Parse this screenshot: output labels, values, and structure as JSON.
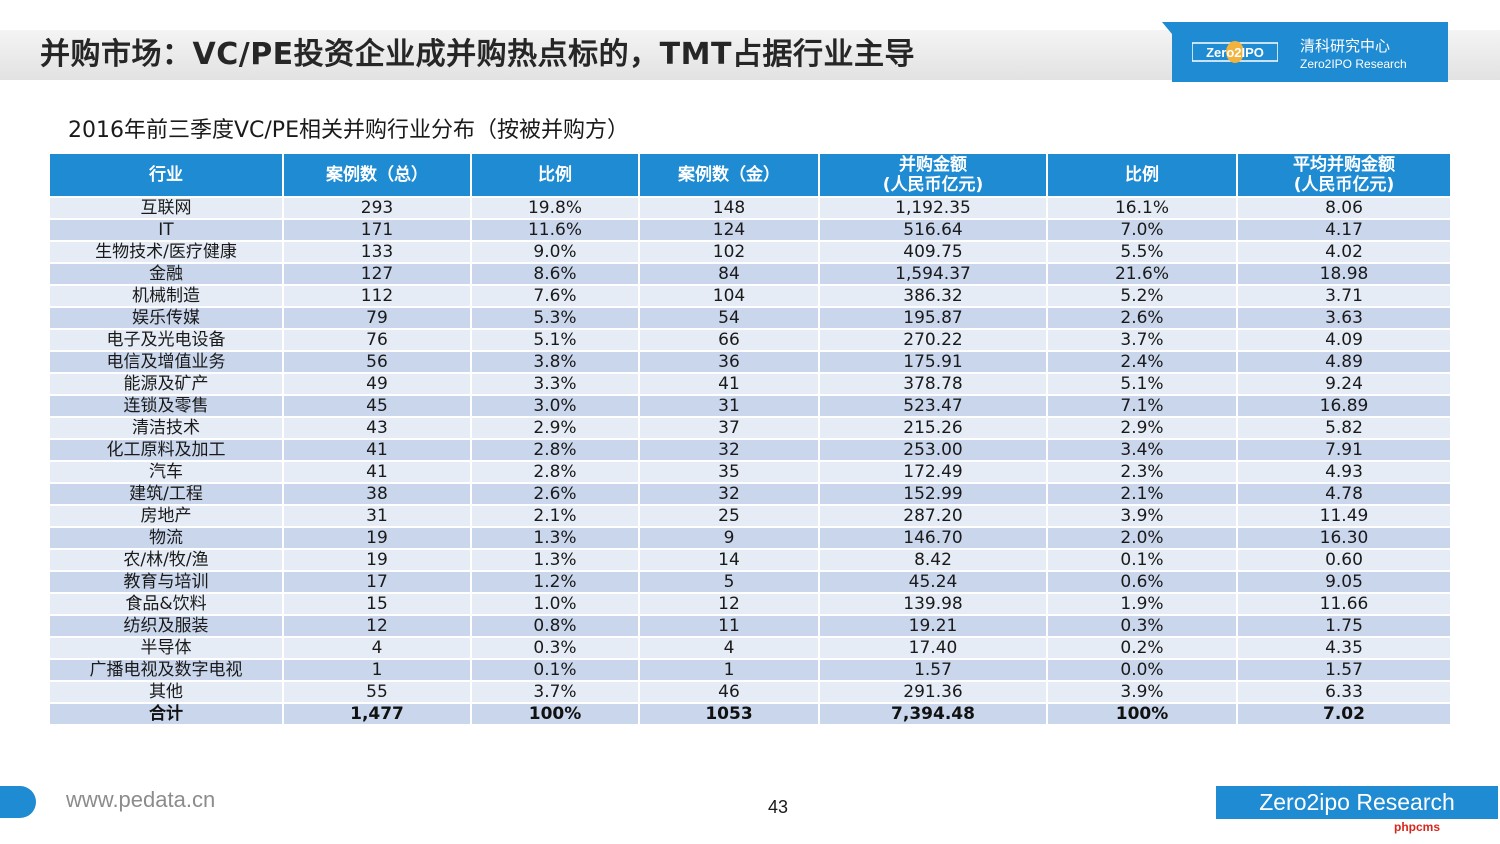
{
  "header": {
    "title": "并购市场：VC/PE投资企业成并购热点标的，TMT占据行业主导",
    "brand_cn": "清科研究中心",
    "brand_en": "Zero2IPO Research",
    "logo_text": "Zero2IPO"
  },
  "table_title": "2016年前三季度VC/PE相关并购行业分布（按被并购方）",
  "columns": [
    {
      "line1": "行业",
      "line2": ""
    },
    {
      "line1": "案例数（总）",
      "line2": ""
    },
    {
      "line1": "比例",
      "line2": ""
    },
    {
      "line1": "案例数（金）",
      "line2": ""
    },
    {
      "line1": "并购金额",
      "line2": "(人民币亿元)"
    },
    {
      "line1": "比例",
      "line2": ""
    },
    {
      "line1": "平均并购金额",
      "line2": "(人民币亿元)"
    }
  ],
  "rows": [
    [
      "互联网",
      "293",
      "19.8%",
      "148",
      "1,192.35",
      "16.1%",
      "8.06"
    ],
    [
      "IT",
      "171",
      "11.6%",
      "124",
      "516.64",
      "7.0%",
      "4.17"
    ],
    [
      "生物技术/医疗健康",
      "133",
      "9.0%",
      "102",
      "409.75",
      "5.5%",
      "4.02"
    ],
    [
      "金融",
      "127",
      "8.6%",
      "84",
      "1,594.37",
      "21.6%",
      "18.98"
    ],
    [
      "机械制造",
      "112",
      "7.6%",
      "104",
      "386.32",
      "5.2%",
      "3.71"
    ],
    [
      "娱乐传媒",
      "79",
      "5.3%",
      "54",
      "195.87",
      "2.6%",
      "3.63"
    ],
    [
      "电子及光电设备",
      "76",
      "5.1%",
      "66",
      "270.22",
      "3.7%",
      "4.09"
    ],
    [
      "电信及增值业务",
      "56",
      "3.8%",
      "36",
      "175.91",
      "2.4%",
      "4.89"
    ],
    [
      "能源及矿产",
      "49",
      "3.3%",
      "41",
      "378.78",
      "5.1%",
      "9.24"
    ],
    [
      "连锁及零售",
      "45",
      "3.0%",
      "31",
      "523.47",
      "7.1%",
      "16.89"
    ],
    [
      "清洁技术",
      "43",
      "2.9%",
      "37",
      "215.26",
      "2.9%",
      "5.82"
    ],
    [
      "化工原料及加工",
      "41",
      "2.8%",
      "32",
      "253.00",
      "3.4%",
      "7.91"
    ],
    [
      "汽车",
      "41",
      "2.8%",
      "35",
      "172.49",
      "2.3%",
      "4.93"
    ],
    [
      "建筑/工程",
      "38",
      "2.6%",
      "32",
      "152.99",
      "2.1%",
      "4.78"
    ],
    [
      "房地产",
      "31",
      "2.1%",
      "25",
      "287.20",
      "3.9%",
      "11.49"
    ],
    [
      "物流",
      "19",
      "1.3%",
      "9",
      "146.70",
      "2.0%",
      "16.30"
    ],
    [
      "农/林/牧/渔",
      "19",
      "1.3%",
      "14",
      "8.42",
      "0.1%",
      "0.60"
    ],
    [
      "教育与培训",
      "17",
      "1.2%",
      "5",
      "45.24",
      "0.6%",
      "9.05"
    ],
    [
      "食品&饮料",
      "15",
      "1.0%",
      "12",
      "139.98",
      "1.9%",
      "11.66"
    ],
    [
      "纺织及服装",
      "12",
      "0.8%",
      "11",
      "19.21",
      "0.3%",
      "1.75"
    ],
    [
      "半导体",
      "4",
      "0.3%",
      "4",
      "17.40",
      "0.2%",
      "4.35"
    ],
    [
      "广播电视及数字电视",
      "1",
      "0.1%",
      "1",
      "1.57",
      "0.0%",
      "1.57"
    ],
    [
      "其他",
      "55",
      "3.7%",
      "46",
      "291.36",
      "3.9%",
      "6.33"
    ]
  ],
  "total": [
    "合计",
    "1,477",
    "100%",
    "1053",
    "7,394.48",
    "100%",
    "7.02"
  ],
  "footer": {
    "url": "www.pedata.cn",
    "page_number": "43",
    "brand": "Zero2ipo Research",
    "watermark": "phpcms"
  },
  "colors": {
    "accent": "#1f8bd2",
    "row_light": "#e6ecf6",
    "row_dark": "#cad6ec"
  }
}
